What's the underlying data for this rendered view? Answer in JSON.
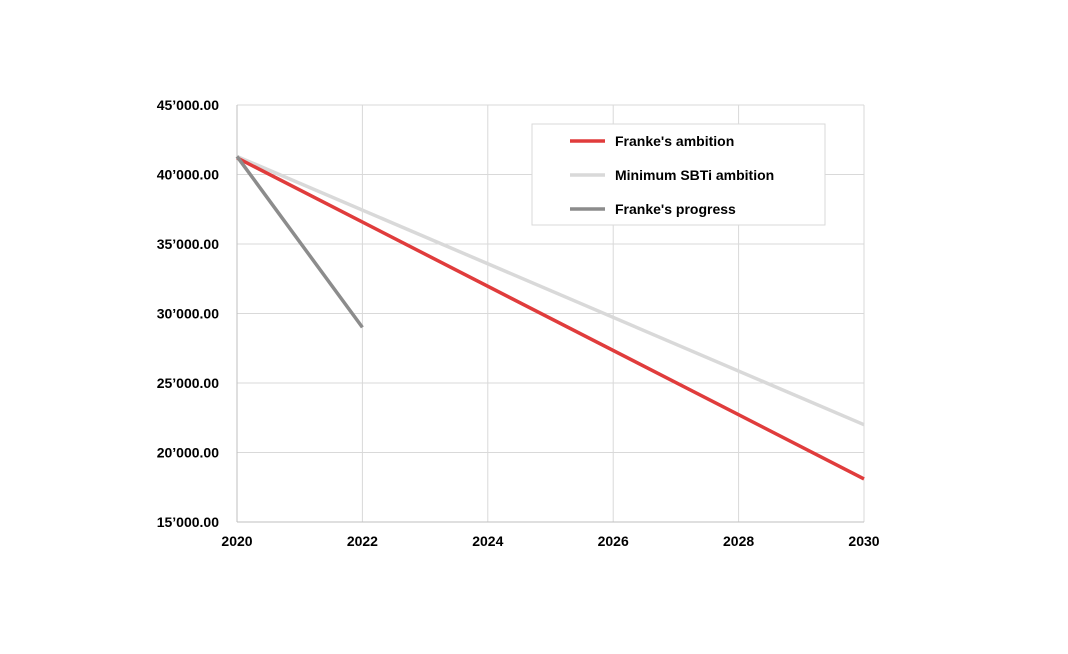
{
  "chart_data": {
    "type": "line",
    "title": "",
    "xlabel": "",
    "ylabel": "",
    "xlim": [
      2020,
      2030
    ],
    "ylim": [
      15000,
      45000
    ],
    "x_ticks": [
      2020,
      2022,
      2024,
      2026,
      2028,
      2030
    ],
    "x_tick_labels": [
      "2020",
      "2022",
      "2024",
      "2026",
      "2028",
      "2030"
    ],
    "y_ticks": [
      15000,
      20000,
      25000,
      30000,
      35000,
      40000,
      45000
    ],
    "y_tick_labels": [
      "15’000.00",
      "20’000.00",
      "25’000.00",
      "30’000.00",
      "35’000.00",
      "40’000.00",
      "45’000.00"
    ],
    "grid": true,
    "legend_position": "top-right",
    "series": [
      {
        "name": "Franke's ambition",
        "color": "#e03c3c",
        "x": [
          2020,
          2030
        ],
        "y": [
          41200,
          18100
        ]
      },
      {
        "name": "Minimum SBTi ambition",
        "color": "#d9d9d9",
        "x": [
          2020,
          2030
        ],
        "y": [
          41300,
          22000
        ]
      },
      {
        "name": "Franke's progress",
        "color": "#8c8c8c",
        "x": [
          2020,
          2022
        ],
        "y": [
          41300,
          29000
        ]
      }
    ]
  }
}
